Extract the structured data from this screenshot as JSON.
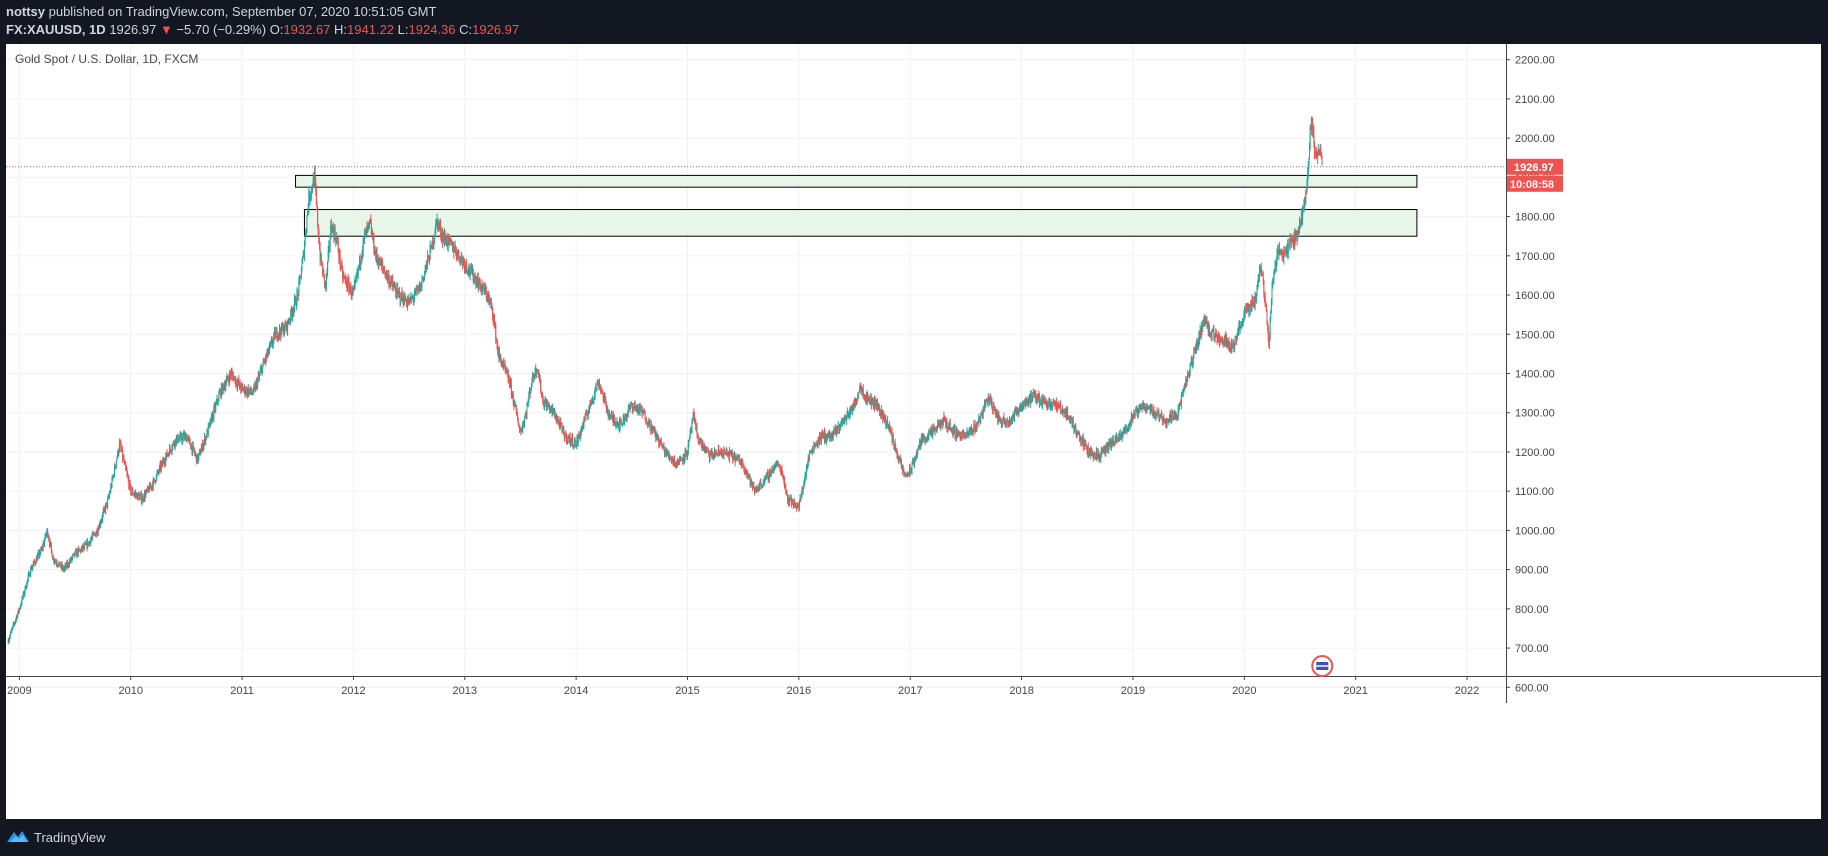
{
  "header": {
    "author": "nottsy",
    "published_text": " published on TradingView.com, September 07, 2020 10:51:05 GMT",
    "symbol": "FX:XAUUSD, 1D",
    "last": "1926.97",
    "change_arrow": "▼",
    "change": "−5.70 (−0.29%)",
    "open_label": "O:",
    "open": "1932.67",
    "high_label": "H:",
    "high": "1941.22",
    "low_label": "L:",
    "low": "1924.36",
    "close_label": "C:",
    "close": "1926.97"
  },
  "chart_title": "Gold Spot / U.S. Dollar, 1D, FXCM",
  "footer": {
    "brand": "TradingView"
  },
  "colors": {
    "up": "#26a69a",
    "down": "#ef5350",
    "zone_fill": "#e8f5e9",
    "grid": "#eef1f6",
    "price_tag": "#ef5350",
    "background_dark": "#131722"
  },
  "chart_data": {
    "type": "candlestick",
    "interval": "1D",
    "ylim": [
      560,
      2240
    ],
    "y_ticks": [
      "600.00",
      "700.00",
      "800.00",
      "900.00",
      "1000.00",
      "1100.00",
      "1200.00",
      "1300.00",
      "1400.00",
      "1500.00",
      "1600.00",
      "1700.00",
      "1800.00",
      "1900.00",
      "2000.00",
      "2100.00",
      "2200.00"
    ],
    "x_ticks": [
      "2009",
      "2010",
      "2011",
      "2012",
      "2013",
      "2014",
      "2015",
      "2016",
      "2017",
      "2018",
      "2019",
      "2020",
      "2021",
      "2022"
    ],
    "xlim": [
      2008.88,
      2022.35
    ],
    "last_price_label": "1926.97",
    "countdown_label": "10:08:58",
    "last_price": 1926.97,
    "price_path": [
      [
        2008.9,
        720
      ],
      [
        2009.0,
        800
      ],
      [
        2009.1,
        900
      ],
      [
        2009.2,
        950
      ],
      [
        2009.25,
        1000
      ],
      [
        2009.3,
        930
      ],
      [
        2009.4,
        900
      ],
      [
        2009.5,
        940
      ],
      [
        2009.6,
        960
      ],
      [
        2009.7,
        1000
      ],
      [
        2009.8,
        1080
      ],
      [
        2009.9,
        1220
      ],
      [
        2010.0,
        1100
      ],
      [
        2010.1,
        1080
      ],
      [
        2010.2,
        1120
      ],
      [
        2010.3,
        1180
      ],
      [
        2010.4,
        1230
      ],
      [
        2010.5,
        1240
      ],
      [
        2010.6,
        1180
      ],
      [
        2010.7,
        1260
      ],
      [
        2010.8,
        1350
      ],
      [
        2010.9,
        1400
      ],
      [
        2011.0,
        1360
      ],
      [
        2011.1,
        1350
      ],
      [
        2011.2,
        1430
      ],
      [
        2011.3,
        1500
      ],
      [
        2011.4,
        1520
      ],
      [
        2011.5,
        1600
      ],
      [
        2011.55,
        1700
      ],
      [
        2011.6,
        1850
      ],
      [
        2011.65,
        1900
      ],
      [
        2011.7,
        1700
      ],
      [
        2011.75,
        1620
      ],
      [
        2011.8,
        1780
      ],
      [
        2011.85,
        1740
      ],
      [
        2011.9,
        1650
      ],
      [
        2012.0,
        1600
      ],
      [
        2012.1,
        1750
      ],
      [
        2012.15,
        1780
      ],
      [
        2012.2,
        1700
      ],
      [
        2012.3,
        1650
      ],
      [
        2012.4,
        1600
      ],
      [
        2012.5,
        1580
      ],
      [
        2012.6,
        1620
      ],
      [
        2012.7,
        1720
      ],
      [
        2012.75,
        1790
      ],
      [
        2012.8,
        1750
      ],
      [
        2012.9,
        1720
      ],
      [
        2013.0,
        1680
      ],
      [
        2013.1,
        1640
      ],
      [
        2013.2,
        1600
      ],
      [
        2013.25,
        1560
      ],
      [
        2013.3,
        1450
      ],
      [
        2013.4,
        1380
      ],
      [
        2013.5,
        1250
      ],
      [
        2013.55,
        1300
      ],
      [
        2013.6,
        1380
      ],
      [
        2013.65,
        1420
      ],
      [
        2013.7,
        1330
      ],
      [
        2013.8,
        1300
      ],
      [
        2013.9,
        1240
      ],
      [
        2014.0,
        1220
      ],
      [
        2014.1,
        1300
      ],
      [
        2014.2,
        1380
      ],
      [
        2014.3,
        1290
      ],
      [
        2014.4,
        1270
      ],
      [
        2014.5,
        1320
      ],
      [
        2014.6,
        1300
      ],
      [
        2014.7,
        1250
      ],
      [
        2014.8,
        1200
      ],
      [
        2014.9,
        1170
      ],
      [
        2015.0,
        1200
      ],
      [
        2015.05,
        1290
      ],
      [
        2015.1,
        1230
      ],
      [
        2015.2,
        1190
      ],
      [
        2015.3,
        1200
      ],
      [
        2015.4,
        1190
      ],
      [
        2015.5,
        1170
      ],
      [
        2015.6,
        1100
      ],
      [
        2015.7,
        1130
      ],
      [
        2015.8,
        1170
      ],
      [
        2015.85,
        1150
      ],
      [
        2015.9,
        1080
      ],
      [
        2016.0,
        1060
      ],
      [
        2016.1,
        1200
      ],
      [
        2016.2,
        1240
      ],
      [
        2016.3,
        1240
      ],
      [
        2016.4,
        1280
      ],
      [
        2016.5,
        1320
      ],
      [
        2016.55,
        1370
      ],
      [
        2016.6,
        1340
      ],
      [
        2016.7,
        1320
      ],
      [
        2016.8,
        1270
      ],
      [
        2016.9,
        1180
      ],
      [
        2016.95,
        1140
      ],
      [
        2017.0,
        1150
      ],
      [
        2017.1,
        1230
      ],
      [
        2017.2,
        1250
      ],
      [
        2017.3,
        1280
      ],
      [
        2017.4,
        1250
      ],
      [
        2017.5,
        1240
      ],
      [
        2017.6,
        1270
      ],
      [
        2017.7,
        1340
      ],
      [
        2017.8,
        1280
      ],
      [
        2017.9,
        1280
      ],
      [
        2018.0,
        1320
      ],
      [
        2018.1,
        1340
      ],
      [
        2018.2,
        1330
      ],
      [
        2018.3,
        1320
      ],
      [
        2018.4,
        1300
      ],
      [
        2018.5,
        1250
      ],
      [
        2018.6,
        1200
      ],
      [
        2018.7,
        1190
      ],
      [
        2018.8,
        1220
      ],
      [
        2018.9,
        1240
      ],
      [
        2019.0,
        1290
      ],
      [
        2019.1,
        1320
      ],
      [
        2019.2,
        1300
      ],
      [
        2019.3,
        1280
      ],
      [
        2019.4,
        1300
      ],
      [
        2019.5,
        1400
      ],
      [
        2019.6,
        1500
      ],
      [
        2019.65,
        1540
      ],
      [
        2019.7,
        1500
      ],
      [
        2019.8,
        1490
      ],
      [
        2019.9,
        1470
      ],
      [
        2020.0,
        1550
      ],
      [
        2020.1,
        1590
      ],
      [
        2020.15,
        1680
      ],
      [
        2020.2,
        1550
      ],
      [
        2020.22,
        1470
      ],
      [
        2020.25,
        1620
      ],
      [
        2020.3,
        1720
      ],
      [
        2020.35,
        1700
      ],
      [
        2020.4,
        1730
      ],
      [
        2020.45,
        1740
      ],
      [
        2020.5,
        1780
      ],
      [
        2020.55,
        1850
      ],
      [
        2020.58,
        1960
      ],
      [
        2020.6,
        2050
      ],
      [
        2020.62,
        2000
      ],
      [
        2020.65,
        1940
      ],
      [
        2020.68,
        1980
      ],
      [
        2020.7,
        1926.97
      ]
    ],
    "zones": [
      {
        "x0": 2011.48,
        "x1": 2021.55,
        "y0": 1875,
        "y1": 1905
      },
      {
        "x0": 2011.56,
        "x1": 2021.55,
        "y0": 1750,
        "y1": 1818
      }
    ]
  }
}
